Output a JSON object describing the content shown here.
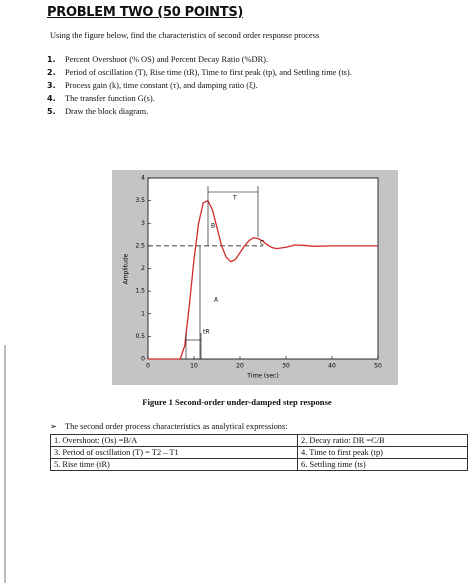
{
  "header": {
    "title": "PROBLEM TWO (50 POINTS)"
  },
  "intro": "Using the figure below, find the characteristics of second order response process",
  "list": [
    {
      "number": "1.",
      "text": "Percent Overshoot (% OS) and Percent Decay Ratio (%DR)."
    },
    {
      "number": "2.",
      "text": "Period of oscillation (T), Rise time (tR), Time to first peak (tp), and Settling time (ts)."
    },
    {
      "number": "3.",
      "text": "Process gain (k), time constant (τ), and damping ratio (ξ)."
    },
    {
      "number": "4.",
      "text": "The transfer function G(s)."
    },
    {
      "number": "5.",
      "text": "Draw the block diagram."
    }
  ],
  "chart_data": {
    "type": "line",
    "x": [
      0,
      7,
      8,
      9,
      10,
      11,
      12,
      13,
      14,
      15,
      16,
      17,
      18,
      19,
      20,
      21,
      22,
      23,
      24,
      25,
      26,
      27,
      28,
      30,
      32,
      34,
      36,
      40,
      45,
      50
    ],
    "series": [
      {
        "color": "#d42a2a",
        "values": [
          0,
          0,
          0.3,
          1.2,
          2.2,
          3.0,
          3.45,
          3.5,
          3.3,
          2.9,
          2.5,
          2.25,
          2.15,
          2.2,
          2.35,
          2.5,
          2.62,
          2.68,
          2.66,
          2.6,
          2.52,
          2.46,
          2.44,
          2.47,
          2.52,
          2.51,
          2.49,
          2.5,
          2.5,
          2.5
        ]
      }
    ],
    "xlim": [
      0,
      50
    ],
    "ylim": [
      0,
      4
    ],
    "xticks": [
      0,
      10,
      20,
      30,
      40,
      50
    ],
    "yticks": [
      0,
      0.5,
      1,
      1.5,
      2,
      2.5,
      3,
      3.5,
      4
    ],
    "xlabel": "Time (sec)",
    "ylabel": "Amplitude",
    "hline": 2.5,
    "annotations": [
      "T",
      "B",
      "C",
      "A",
      "tR"
    ]
  },
  "caption": "Figure 1 Second-order under-damped step response",
  "bullet": "The second order process characteristics as analytical expressions:",
  "table": {
    "rows": [
      [
        "1.   Overshoot: (Os) =B/A",
        "2.   Decay ratio: DR =C/B"
      ],
      [
        "3.   Period of oscillation (T) = T2 – T1",
        "4.   Time to first peak (tp)"
      ],
      [
        "5.   Rise time (tR)",
        "6.   Settling time (ts)"
      ]
    ]
  }
}
